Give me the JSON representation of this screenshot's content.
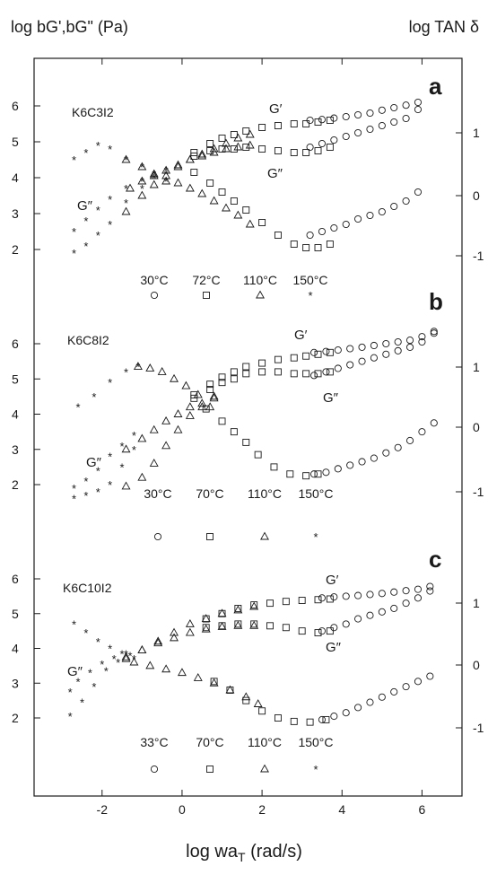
{
  "header": {
    "left_axis_title": "log bG',bG\" (Pa)",
    "right_axis_title": "log TAN δ"
  },
  "x_axis": {
    "label_main": "log wa",
    "label_sub": "T",
    "label_tail": " (rad/s)",
    "ticks": [
      "-2",
      "0",
      "2",
      "4",
      "6"
    ]
  },
  "colors": {
    "ink": "#1a1a1a",
    "background": "#ffffff"
  },
  "chart_data": [
    {
      "type": "scatter",
      "panel": "a",
      "sample": "K6C3I2",
      "xlabel": "log waT (rad/s)",
      "ylabel": "log bG',bG\" (Pa)",
      "y2label": "log TAN δ",
      "xlim": [
        -3.7,
        7.0
      ],
      "ylim": [
        1.2,
        7.3
      ],
      "y_ticks": [
        2,
        3,
        4,
        5,
        6
      ],
      "y2_ticks": [
        "1",
        "0",
        "-1"
      ],
      "curve_labels": [
        "G′",
        "G″",
        "G″"
      ],
      "temperature_legend": [
        "30°C",
        "72°C",
        "110°C",
        "150°C"
      ],
      "legend_symbols": [
        "circle",
        "square",
        "triangle",
        "star"
      ],
      "series": [
        {
          "name": "150°C",
          "symbol": "star",
          "x": [
            -2.7,
            -2.4,
            -2.1,
            -1.8,
            -1.4,
            -1.0,
            -0.7,
            -0.4,
            -2.7,
            -2.4,
            -2.1,
            -1.8,
            -1.4,
            -1.0,
            -0.7,
            -0.4,
            -2.7,
            -2.4,
            -2.1,
            -1.8,
            -1.4,
            -1.0,
            -0.7,
            -0.4
          ],
          "y": [
            1.9,
            2.1,
            2.4,
            2.7,
            3.3,
            3.7,
            4.0,
            4.2,
            2.5,
            2.8,
            3.1,
            3.4,
            3.7,
            3.9,
            4.0,
            4.1,
            4.5,
            4.7,
            4.9,
            4.8,
            4.5,
            4.3,
            4.1,
            3.9
          ]
        },
        {
          "name": "110°C",
          "symbol": "triangle",
          "x": [
            -1.4,
            -1.0,
            -0.7,
            -0.4,
            -0.1,
            0.2,
            0.5,
            0.8,
            1.1,
            1.4,
            1.7,
            -1.3,
            -1.0,
            -0.7,
            -0.4,
            -0.1,
            0.2,
            0.5,
            0.8,
            1.1,
            1.4,
            1.7,
            -1.4,
            -1.0,
            -0.7,
            -0.4,
            -0.1,
            0.2,
            0.5,
            0.8,
            1.1,
            1.4,
            1.7
          ],
          "y": [
            3.05,
            3.5,
            3.8,
            4.05,
            4.3,
            4.5,
            4.65,
            4.8,
            4.95,
            5.1,
            5.2,
            3.7,
            3.9,
            4.05,
            4.2,
            4.35,
            4.5,
            4.6,
            4.7,
            4.8,
            4.85,
            4.9,
            4.5,
            4.3,
            4.1,
            3.9,
            3.85,
            3.7,
            3.55,
            3.35,
            3.15,
            2.95,
            2.7
          ]
        },
        {
          "name": "72°C",
          "symbol": "square",
          "x": [
            0.3,
            0.7,
            1.0,
            1.3,
            1.6,
            2.0,
            2.4,
            2.8,
            3.1,
            3.4,
            3.7,
            0.3,
            0.7,
            1.0,
            1.3,
            1.6,
            2.0,
            2.4,
            2.8,
            3.1,
            3.4,
            3.7,
            0.3,
            0.7,
            1.0,
            1.3,
            1.6,
            2.0,
            2.4,
            2.8,
            3.1,
            3.4,
            3.7
          ],
          "y": [
            4.7,
            4.95,
            5.1,
            5.2,
            5.3,
            5.4,
            5.45,
            5.5,
            5.5,
            5.55,
            5.6,
            4.6,
            4.75,
            4.8,
            4.8,
            4.85,
            4.8,
            4.75,
            4.7,
            4.7,
            4.75,
            4.85,
            4.15,
            3.85,
            3.6,
            3.35,
            3.1,
            2.75,
            2.4,
            2.15,
            2.05,
            2.05,
            2.15
          ]
        },
        {
          "name": "30°C",
          "symbol": "circle",
          "x": [
            3.2,
            3.5,
            3.8,
            4.1,
            4.4,
            4.7,
            5.0,
            5.3,
            5.6,
            5.9,
            3.2,
            3.5,
            3.8,
            4.1,
            4.4,
            4.7,
            5.0,
            5.3,
            5.6,
            5.9,
            3.2,
            3.5,
            3.8,
            4.1,
            4.4,
            4.7,
            5.0,
            5.3,
            5.6,
            5.9
          ],
          "y": [
            5.6,
            5.62,
            5.66,
            5.7,
            5.75,
            5.8,
            5.88,
            5.95,
            6.02,
            6.1,
            4.85,
            4.95,
            5.05,
            5.15,
            5.25,
            5.35,
            5.45,
            5.55,
            5.65,
            5.9,
            2.4,
            2.5,
            2.6,
            2.7,
            2.85,
            2.95,
            3.05,
            3.2,
            3.35,
            3.6
          ]
        }
      ]
    },
    {
      "type": "scatter",
      "panel": "b",
      "sample": "K6C8I2",
      "xlabel": "log waT (rad/s)",
      "ylabel": "log bG',bG\" (Pa)",
      "y2label": "log TAN δ",
      "xlim": [
        -3.7,
        7.0
      ],
      "ylim": [
        1.2,
        7.3
      ],
      "y_ticks": [
        2,
        3,
        4,
        5,
        6
      ],
      "y2_ticks": [
        "1",
        "0",
        "-1"
      ],
      "curve_labels": [
        "G′",
        "G″",
        "G″"
      ],
      "temperature_legend": [
        "30°C",
        "70°C",
        "110°C",
        "150°C"
      ],
      "legend_symbols": [
        "circle",
        "square",
        "triangle",
        "star"
      ],
      "series": [
        {
          "name": "150°C",
          "symbol": "star",
          "x": [
            -2.7,
            -2.4,
            -2.1,
            -1.8,
            -1.5,
            -1.2,
            -2.7,
            -2.4,
            -2.1,
            -1.8,
            -1.5,
            -1.2,
            -2.6,
            -2.2,
            -1.8,
            -1.4,
            -1.1
          ],
          "y": [
            1.6,
            1.7,
            1.8,
            2.0,
            2.5,
            3.0,
            1.9,
            2.1,
            2.4,
            2.8,
            3.1,
            3.4,
            4.2,
            4.5,
            4.9,
            5.2,
            5.35
          ]
        },
        {
          "name": "110°C",
          "symbol": "triangle",
          "x": [
            -1.4,
            -1.0,
            -0.7,
            -0.4,
            -0.1,
            0.2,
            0.5,
            0.8,
            -1.4,
            -1.0,
            -0.7,
            -0.4,
            -0.1,
            0.2,
            0.5,
            0.8,
            -1.1,
            -0.8,
            -0.5,
            -0.2,
            0.1,
            0.4,
            0.7
          ],
          "y": [
            1.95,
            2.2,
            2.6,
            3.1,
            3.55,
            3.95,
            4.2,
            4.5,
            3.0,
            3.3,
            3.55,
            3.8,
            4.0,
            4.2,
            4.3,
            4.45,
            5.35,
            5.3,
            5.2,
            5.0,
            4.8,
            4.55,
            4.2
          ]
        },
        {
          "name": "70°C",
          "symbol": "square",
          "x": [
            0.3,
            0.7,
            1.0,
            1.3,
            1.6,
            2.0,
            2.4,
            2.8,
            3.1,
            3.4,
            3.7,
            0.3,
            0.7,
            1.0,
            1.3,
            1.6,
            2.0,
            2.4,
            2.8,
            3.1,
            3.4,
            3.7,
            0.6,
            1.0,
            1.3,
            1.6,
            1.9,
            2.3,
            2.7,
            3.1,
            3.4
          ],
          "y": [
            4.55,
            4.85,
            5.05,
            5.2,
            5.35,
            5.45,
            5.55,
            5.6,
            5.65,
            5.7,
            5.75,
            4.45,
            4.7,
            4.9,
            5.0,
            5.15,
            5.2,
            5.2,
            5.15,
            5.15,
            5.15,
            5.2,
            4.15,
            3.8,
            3.5,
            3.2,
            2.85,
            2.5,
            2.3,
            2.25,
            2.3
          ]
        },
        {
          "name": "30°C",
          "symbol": "circle",
          "x": [
            3.3,
            3.6,
            3.9,
            4.2,
            4.5,
            4.8,
            5.1,
            5.4,
            5.7,
            6.0,
            6.3,
            3.3,
            3.6,
            3.9,
            4.2,
            4.5,
            4.8,
            5.1,
            5.4,
            5.7,
            6.0,
            6.3,
            3.3,
            3.6,
            3.9,
            4.2,
            4.5,
            4.8,
            5.1,
            5.4,
            5.7,
            6.0,
            6.3
          ],
          "y": [
            5.75,
            5.78,
            5.82,
            5.86,
            5.9,
            5.95,
            6.0,
            6.05,
            6.1,
            6.2,
            6.35,
            5.1,
            5.2,
            5.3,
            5.4,
            5.5,
            5.6,
            5.7,
            5.8,
            5.9,
            6.05,
            6.3,
            2.3,
            2.35,
            2.45,
            2.55,
            2.65,
            2.75,
            2.9,
            3.05,
            3.25,
            3.5,
            3.75
          ]
        }
      ]
    },
    {
      "type": "scatter",
      "panel": "c",
      "sample": "K6C10I2",
      "xlabel": "log waT (rad/s)",
      "ylabel": "log bG',bG\" (Pa)",
      "y2label": "log TAN δ",
      "xlim": [
        -3.7,
        7.0
      ],
      "ylim": [
        1.2,
        7.3
      ],
      "y_ticks": [
        2,
        3,
        4,
        5,
        6
      ],
      "y2_ticks": [
        "1",
        "0",
        "-1"
      ],
      "curve_labels": [
        "G′",
        "G″",
        "G″"
      ],
      "temperature_legend": [
        "33°C",
        "70°C",
        "110°C",
        "150°C"
      ],
      "legend_symbols": [
        "circle",
        "square",
        "triangle",
        "star"
      ],
      "series": [
        {
          "name": "150°C",
          "symbol": "star",
          "x": [
            -2.8,
            -2.5,
            -2.2,
            -1.9,
            -1.6,
            -1.3,
            -2.8,
            -2.6,
            -2.3,
            -2.0,
            -1.7,
            -1.4,
            -2.7,
            -2.4,
            -2.1,
            -1.8,
            -1.5,
            -1.2
          ],
          "y": [
            2.05,
            2.45,
            2.9,
            3.35,
            3.6,
            3.8,
            2.75,
            3.05,
            3.3,
            3.55,
            3.7,
            3.85,
            4.7,
            4.45,
            4.2,
            4.0,
            3.85,
            3.7
          ]
        },
        {
          "name": "110°C",
          "symbol": "triangle",
          "x": [
            -1.4,
            -1.0,
            -0.6,
            -0.2,
            0.2,
            0.6,
            1.0,
            1.4,
            1.8,
            -1.4,
            -1.0,
            -0.6,
            -0.2,
            0.2,
            0.6,
            1.0,
            1.4,
            1.8,
            -1.2,
            -0.8,
            -0.4,
            0.0,
            0.4,
            0.8,
            1.2,
            1.6,
            1.9
          ],
          "y": [
            3.7,
            3.95,
            4.2,
            4.45,
            4.7,
            4.85,
            5.0,
            5.1,
            5.2,
            3.75,
            3.95,
            4.15,
            4.3,
            4.45,
            4.55,
            4.62,
            4.65,
            4.65,
            3.6,
            3.5,
            3.4,
            3.3,
            3.15,
            3.0,
            2.8,
            2.6,
            2.4
          ]
        },
        {
          "name": "70°C",
          "symbol": "square",
          "x": [
            0.6,
            1.0,
            1.4,
            1.8,
            2.2,
            2.6,
            3.0,
            3.4,
            3.7,
            0.6,
            1.0,
            1.4,
            1.8,
            2.2,
            2.6,
            3.0,
            3.4,
            3.7,
            0.8,
            1.2,
            1.6,
            2.0,
            2.4,
            2.8,
            3.2,
            3.6
          ],
          "y": [
            4.85,
            5.0,
            5.15,
            5.25,
            5.3,
            5.35,
            5.38,
            5.4,
            5.42,
            4.6,
            4.65,
            4.7,
            4.7,
            4.65,
            4.6,
            4.5,
            4.45,
            4.5,
            3.05,
            2.8,
            2.5,
            2.2,
            2.0,
            1.9,
            1.88,
            1.95
          ]
        },
        {
          "name": "33°C",
          "symbol": "circle",
          "x": [
            3.5,
            3.8,
            4.1,
            4.4,
            4.7,
            5.0,
            5.3,
            5.6,
            5.9,
            6.2,
            3.5,
            3.8,
            4.1,
            4.4,
            4.7,
            5.0,
            5.3,
            5.6,
            5.9,
            6.2,
            3.5,
            3.8,
            4.1,
            4.4,
            4.7,
            5.0,
            5.3,
            5.6,
            5.9,
            6.2
          ],
          "y": [
            5.45,
            5.48,
            5.5,
            5.52,
            5.55,
            5.58,
            5.62,
            5.66,
            5.7,
            5.78,
            4.5,
            4.6,
            4.7,
            4.85,
            4.95,
            5.05,
            5.15,
            5.3,
            5.45,
            5.65,
            1.95,
            2.05,
            2.15,
            2.3,
            2.45,
            2.6,
            2.75,
            2.9,
            3.05,
            3.2
          ]
        }
      ]
    }
  ]
}
